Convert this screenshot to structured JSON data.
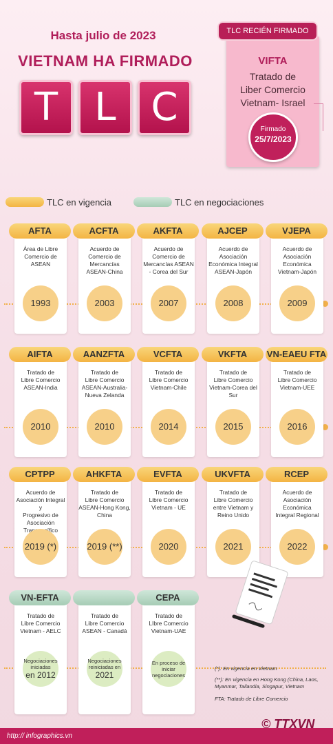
{
  "header": {
    "subtitle": "Hasta julio de 2023",
    "title": "VIETNAM HA FIRMADO",
    "letters": [
      "T",
      "L",
      "C"
    ]
  },
  "recent": {
    "tag": "TLC RECIÉN FIRMADO",
    "name": "VIFTA",
    "desc_lines": [
      "Tratado de",
      "Liber Comercio",
      "Vietnam- Israel"
    ],
    "signed_label": "Firmado",
    "signed_date": "25/7/2023"
  },
  "legend": {
    "active": "TLC en vigencia",
    "negotiating": "TLC en negociaciones"
  },
  "rows": [
    [
      {
        "name": "AFTA",
        "desc": [
          "Área de Libre",
          "Comercio de",
          "ASEAN"
        ],
        "year": "1993",
        "status": "act"
      },
      {
        "name": "ACFTA",
        "desc": [
          "Acuerdo de",
          "Comercio de",
          "Mercancías",
          "ASEAN-China"
        ],
        "year": "2003",
        "status": "act"
      },
      {
        "name": "AKFTA",
        "desc": [
          "Acuerdo de",
          "Comercio de",
          "Mercancías ASEAN",
          "- Corea del Sur"
        ],
        "year": "2007",
        "status": "act"
      },
      {
        "name": "AJCEP",
        "desc": [
          "Acuerdo de",
          "Asociación",
          "Económica Integral",
          "ASEAN-Japón"
        ],
        "year": "2008",
        "status": "act"
      },
      {
        "name": "VJEPA",
        "desc": [
          "Acuerdo de",
          "Asociación",
          "Económica",
          "Vietnam-Japón"
        ],
        "year": "2009",
        "status": "act"
      }
    ],
    [
      {
        "name": "AIFTA",
        "desc": [
          "Tratado de",
          "Libre Comercio",
          "ASEAN-India"
        ],
        "year": "2010",
        "status": "act"
      },
      {
        "name": "AANZFTA",
        "desc": [
          "Tratado de",
          "Libre Comercio",
          "ASEAN-Australia-",
          "Nueva Zelanda"
        ],
        "year": "2010",
        "status": "act"
      },
      {
        "name": "VCFTA",
        "desc": [
          "Tratado de",
          "Libre Comercio",
          "Vietnam-Chile"
        ],
        "year": "2014",
        "status": "act"
      },
      {
        "name": "VKFTA",
        "desc": [
          "Tratado de",
          "Libre Comercio",
          "Vietnam-Corea del",
          "Sur"
        ],
        "year": "2015",
        "status": "act"
      },
      {
        "name": "VN-EAEU FTA",
        "desc": [
          "Tratado de",
          "Libre Comercio",
          "Vietnam-UEE"
        ],
        "year": "2016",
        "status": "act"
      }
    ],
    [
      {
        "name": "CPTPP",
        "desc": [
          "Acuerdo de",
          "Asociación Integral y",
          "Progresivo de",
          "Asociación",
          "Transpacífico"
        ],
        "year": "2019 (*)",
        "status": "act"
      },
      {
        "name": "AHKFTA",
        "desc": [
          "Tratado de",
          "Libre Comercio",
          "ASEAN-Hong Kong,",
          "China"
        ],
        "year": "2019 (**)",
        "status": "act"
      },
      {
        "name": "EVFTA",
        "desc": [
          "Tratado de",
          "Libre Comercio",
          "Vietnam - UE"
        ],
        "year": "2020",
        "status": "act"
      },
      {
        "name": "UKVFTA",
        "desc": [
          "Tratado de",
          "Libre Comercio",
          "entre Vietnam y",
          "Reino Unido"
        ],
        "year": "2021",
        "status": "act"
      },
      {
        "name": "RCEP",
        "desc": [
          "Acuerdo de",
          "Asociación",
          "Económica",
          "Integral Regional"
        ],
        "year": "2022",
        "status": "act"
      }
    ],
    [
      {
        "name": "VN-EFTA",
        "desc": [
          "Tratado de",
          "Libre Comercio",
          "Vietnam - AELC"
        ],
        "neg_small": "Negociaciones iniciadas",
        "neg_big": "en 2012",
        "status": "neg"
      },
      {
        "name": "",
        "desc": [
          "Tratado de",
          "Libre Comercio",
          "ASEAN - Canadá"
        ],
        "neg_small": "Negociaciones reiniciadas en",
        "neg_big": "2021",
        "status": "neg"
      },
      {
        "name": "CEPA",
        "desc": [
          "Tratado de",
          "LIbre Comercio",
          "Vietnam-UAE"
        ],
        "neg_small": "En proceso de iniciar negociaciones",
        "neg_big": "",
        "status": "neg"
      }
    ]
  ],
  "notes": [
    "(*): En vigencia en Vietnam",
    "(**): En vigencia en Hong Kong (China, Laos, Myanmar, Tailandia, Singapur, Vietnam",
    "FTA: Tratado de Libre Comercio"
  ],
  "footer": {
    "url": "http:// infographics.vn",
    "brand": "© TTXVN"
  },
  "colors": {
    "brand": "#b01e5a",
    "active": "#f3b443",
    "negotiating": "#a6ccb5"
  }
}
